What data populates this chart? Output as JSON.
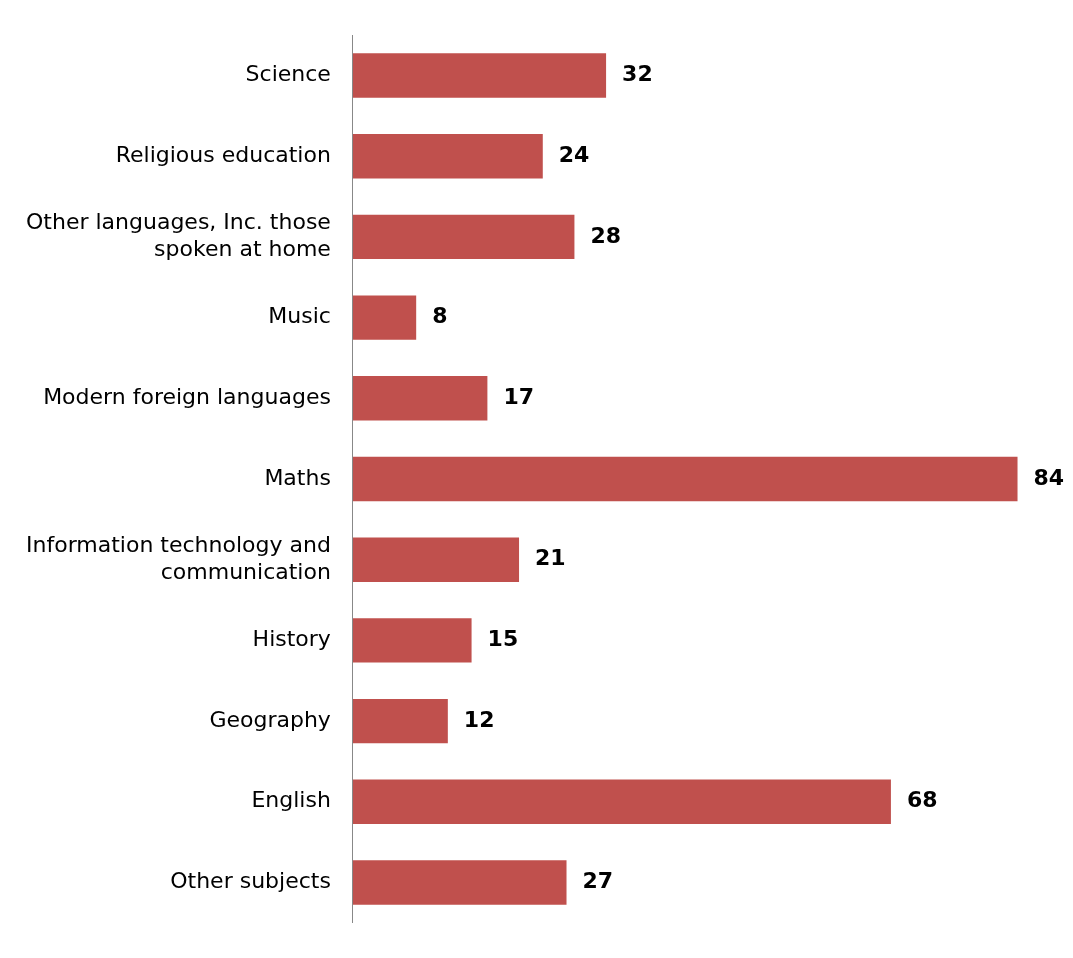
{
  "chart_data": {
    "type": "bar",
    "orientation": "horizontal",
    "categories": [
      "Science",
      "Religious education",
      "Other languages, Inc. those spoken at home",
      "Music",
      "Modern foreign languages",
      "Maths",
      "Information technology and communication",
      "History",
      "Geography",
      "English",
      "Other subjects"
    ],
    "values": [
      32,
      24,
      28,
      8,
      17,
      84,
      21,
      15,
      12,
      68,
      27
    ],
    "color": "#c0504d",
    "data_labels": true,
    "grid": false,
    "legend": false,
    "tick_labels": "y"
  }
}
